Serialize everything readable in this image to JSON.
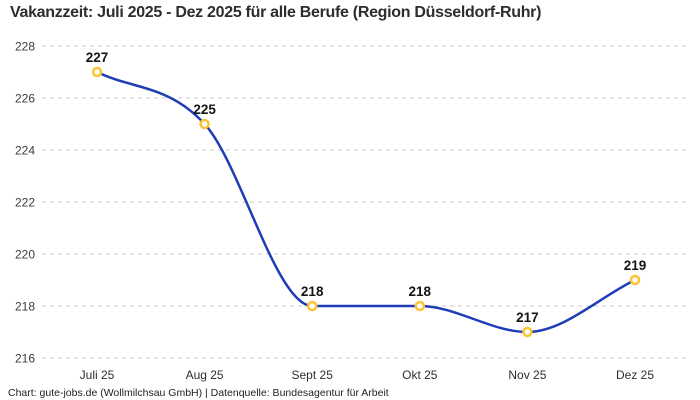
{
  "chart_data": {
    "type": "line",
    "title": "Vakanzzeit: Juli 2025 - Dez 2025 für alle Berufe (Region Düsseldorf-Ruhr)",
    "categories": [
      "Juli 25",
      "Aug 25",
      "Sept 25",
      "Okt 25",
      "Nov 25",
      "Dez 25"
    ],
    "values": [
      227,
      225,
      218,
      218,
      217,
      219
    ],
    "point_labels": [
      "227",
      "225",
      "218",
      "218",
      "217",
      "219"
    ],
    "xlabel": "",
    "ylabel": "",
    "ylim": [
      216,
      228
    ],
    "yticks": [
      216,
      218,
      220,
      222,
      224,
      226,
      228
    ],
    "grid": "horizontal-dashed",
    "legend": "none",
    "curve": "smooth-monotone",
    "line_color": "#1e3db6",
    "marker_color": "#fcc333",
    "marker_fill": "#ffffff",
    "grid_color": "#cbcbcb",
    "label_color": "#141414",
    "tick_color": "#3c3c3c"
  },
  "footer": {
    "credit": "Chart: gute-jobs.de (Wollmilchsau GmbH) | Datenquelle: Bundesagentur für Arbeit"
  }
}
